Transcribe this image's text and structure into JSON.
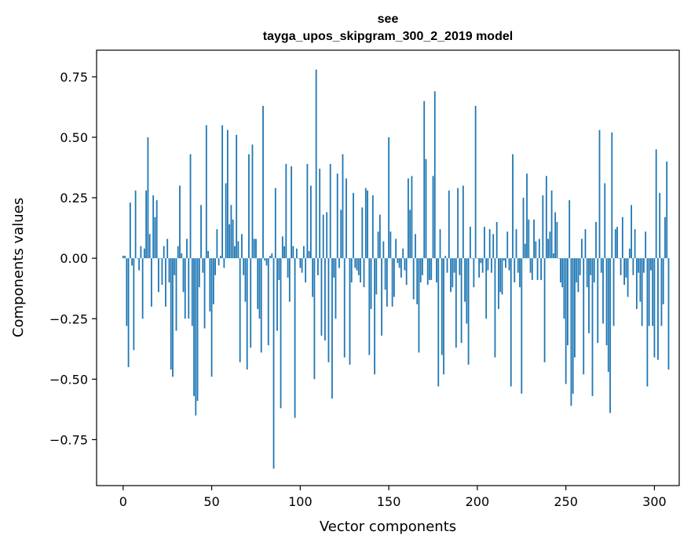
{
  "chart_data": {
    "type": "bar",
    "title": "see",
    "subtitle": "tayga_upos_skipgram_300_2_2019 model",
    "xlabel": "Vector components",
    "ylabel": "Components values",
    "xlim": [
      -15,
      314
    ],
    "ylim": [
      -0.94,
      0.86
    ],
    "xticks": [
      0,
      50,
      100,
      150,
      200,
      250,
      300
    ],
    "yticks": [
      -0.75,
      -0.5,
      -0.25,
      0.0,
      0.25,
      0.5,
      0.75
    ],
    "ytick_labels": [
      "−0.75",
      "−0.50",
      "−0.25",
      "0.00",
      "0.25",
      "0.50",
      "0.75"
    ],
    "bar_color": "#1f77b4",
    "grid": false,
    "series": [
      {
        "values": [
          0.01,
          0.01,
          -0.28,
          -0.45,
          0.23,
          -0.03,
          -0.38,
          0.28,
          0.0,
          -0.05,
          0.05,
          -0.25,
          0.04,
          0.28,
          0.5,
          0.1,
          -0.2,
          0.26,
          0.17,
          0.24,
          -0.14,
          0.0,
          -0.11,
          0.05,
          -0.2,
          0.08,
          -0.1,
          -0.46,
          -0.49,
          -0.07,
          -0.3,
          0.05,
          0.3,
          0.02,
          -0.14,
          -0.25,
          0.08,
          -0.25,
          0.43,
          -0.28,
          -0.57,
          -0.65,
          -0.59,
          -0.12,
          0.22,
          -0.06,
          -0.29,
          0.55,
          0.03,
          -0.22,
          -0.49,
          -0.19,
          -0.07,
          0.12,
          -0.03,
          0.01,
          0.55,
          -0.04,
          0.31,
          0.53,
          0.14,
          0.22,
          0.16,
          0.05,
          0.51,
          0.07,
          -0.43,
          0.1,
          -0.07,
          -0.18,
          -0.46,
          0.43,
          -0.37,
          0.47,
          0.08,
          0.08,
          -0.21,
          -0.25,
          -0.39,
          0.63,
          -0.01,
          -0.03,
          -0.36,
          0.01,
          0.02,
          -0.87,
          0.29,
          -0.3,
          -0.09,
          -0.62,
          0.09,
          0.05,
          0.39,
          -0.08,
          -0.18,
          0.38,
          0.05,
          -0.66,
          0.04,
          0.0,
          -0.04,
          -0.06,
          0.05,
          -0.1,
          0.39,
          0.03,
          0.3,
          -0.16,
          -0.5,
          0.78,
          -0.07,
          0.37,
          -0.32,
          0.18,
          -0.34,
          0.19,
          -0.43,
          0.39,
          -0.58,
          -0.08,
          -0.25,
          0.35,
          -0.04,
          0.2,
          0.43,
          -0.41,
          0.33,
          0.0,
          -0.44,
          -0.1,
          0.27,
          -0.04,
          -0.05,
          -0.07,
          -0.1,
          0.21,
          -0.12,
          0.29,
          0.28,
          -0.4,
          -0.21,
          0.26,
          -0.48,
          -0.15,
          0.11,
          0.18,
          -0.32,
          0.07,
          -0.13,
          -0.2,
          0.5,
          0.11,
          -0.2,
          -0.16,
          0.08,
          -0.02,
          -0.04,
          -0.08,
          0.04,
          -0.05,
          -0.11,
          0.33,
          0.2,
          0.34,
          -0.17,
          0.1,
          -0.19,
          -0.39,
          -0.1,
          -0.07,
          0.65,
          0.41,
          -0.11,
          -0.09,
          -0.09,
          0.34,
          0.69,
          -0.1,
          -0.53,
          0.12,
          -0.4,
          -0.48,
          0.01,
          -0.06,
          0.28,
          -0.14,
          -0.12,
          -0.06,
          -0.37,
          0.29,
          -0.07,
          -0.35,
          0.3,
          -0.18,
          -0.27,
          -0.44,
          0.13,
          0.0,
          -0.12,
          0.63,
          0.0,
          -0.08,
          -0.02,
          -0.06,
          0.13,
          -0.25,
          -0.05,
          0.12,
          -0.06,
          0.1,
          -0.41,
          0.15,
          -0.21,
          -0.14,
          -0.15,
          -0.01,
          -0.04,
          0.11,
          -0.05,
          -0.53,
          0.43,
          -0.1,
          0.12,
          -0.06,
          -0.12,
          -0.56,
          0.25,
          0.06,
          0.35,
          0.16,
          -0.06,
          -0.09,
          0.16,
          0.07,
          -0.09,
          0.08,
          -0.09,
          0.26,
          -0.43,
          0.34,
          0.08,
          0.11,
          0.28,
          0.02,
          0.19,
          0.15,
          0.0,
          -0.1,
          -0.12,
          -0.25,
          -0.52,
          -0.36,
          0.24,
          -0.61,
          -0.56,
          -0.41,
          -0.1,
          -0.14,
          -0.07,
          0.08,
          -0.48,
          0.12,
          -0.12,
          -0.31,
          -0.07,
          -0.57,
          -0.1,
          0.15,
          -0.35,
          0.53,
          -0.06,
          -0.27,
          0.31,
          -0.36,
          -0.47,
          -0.64,
          0.52,
          -0.28,
          0.12,
          0.13,
          0.0,
          -0.07,
          0.17,
          -0.11,
          -0.08,
          -0.16,
          0.04,
          0.22,
          -0.07,
          0.12,
          -0.21,
          -0.06,
          -0.18,
          -0.28,
          -0.06,
          0.11,
          -0.53,
          -0.28,
          -0.05,
          -0.28,
          -0.41,
          0.45,
          -0.42,
          0.27,
          -0.28,
          -0.19,
          0.17,
          0.4,
          -0.46
        ]
      }
    ]
  }
}
